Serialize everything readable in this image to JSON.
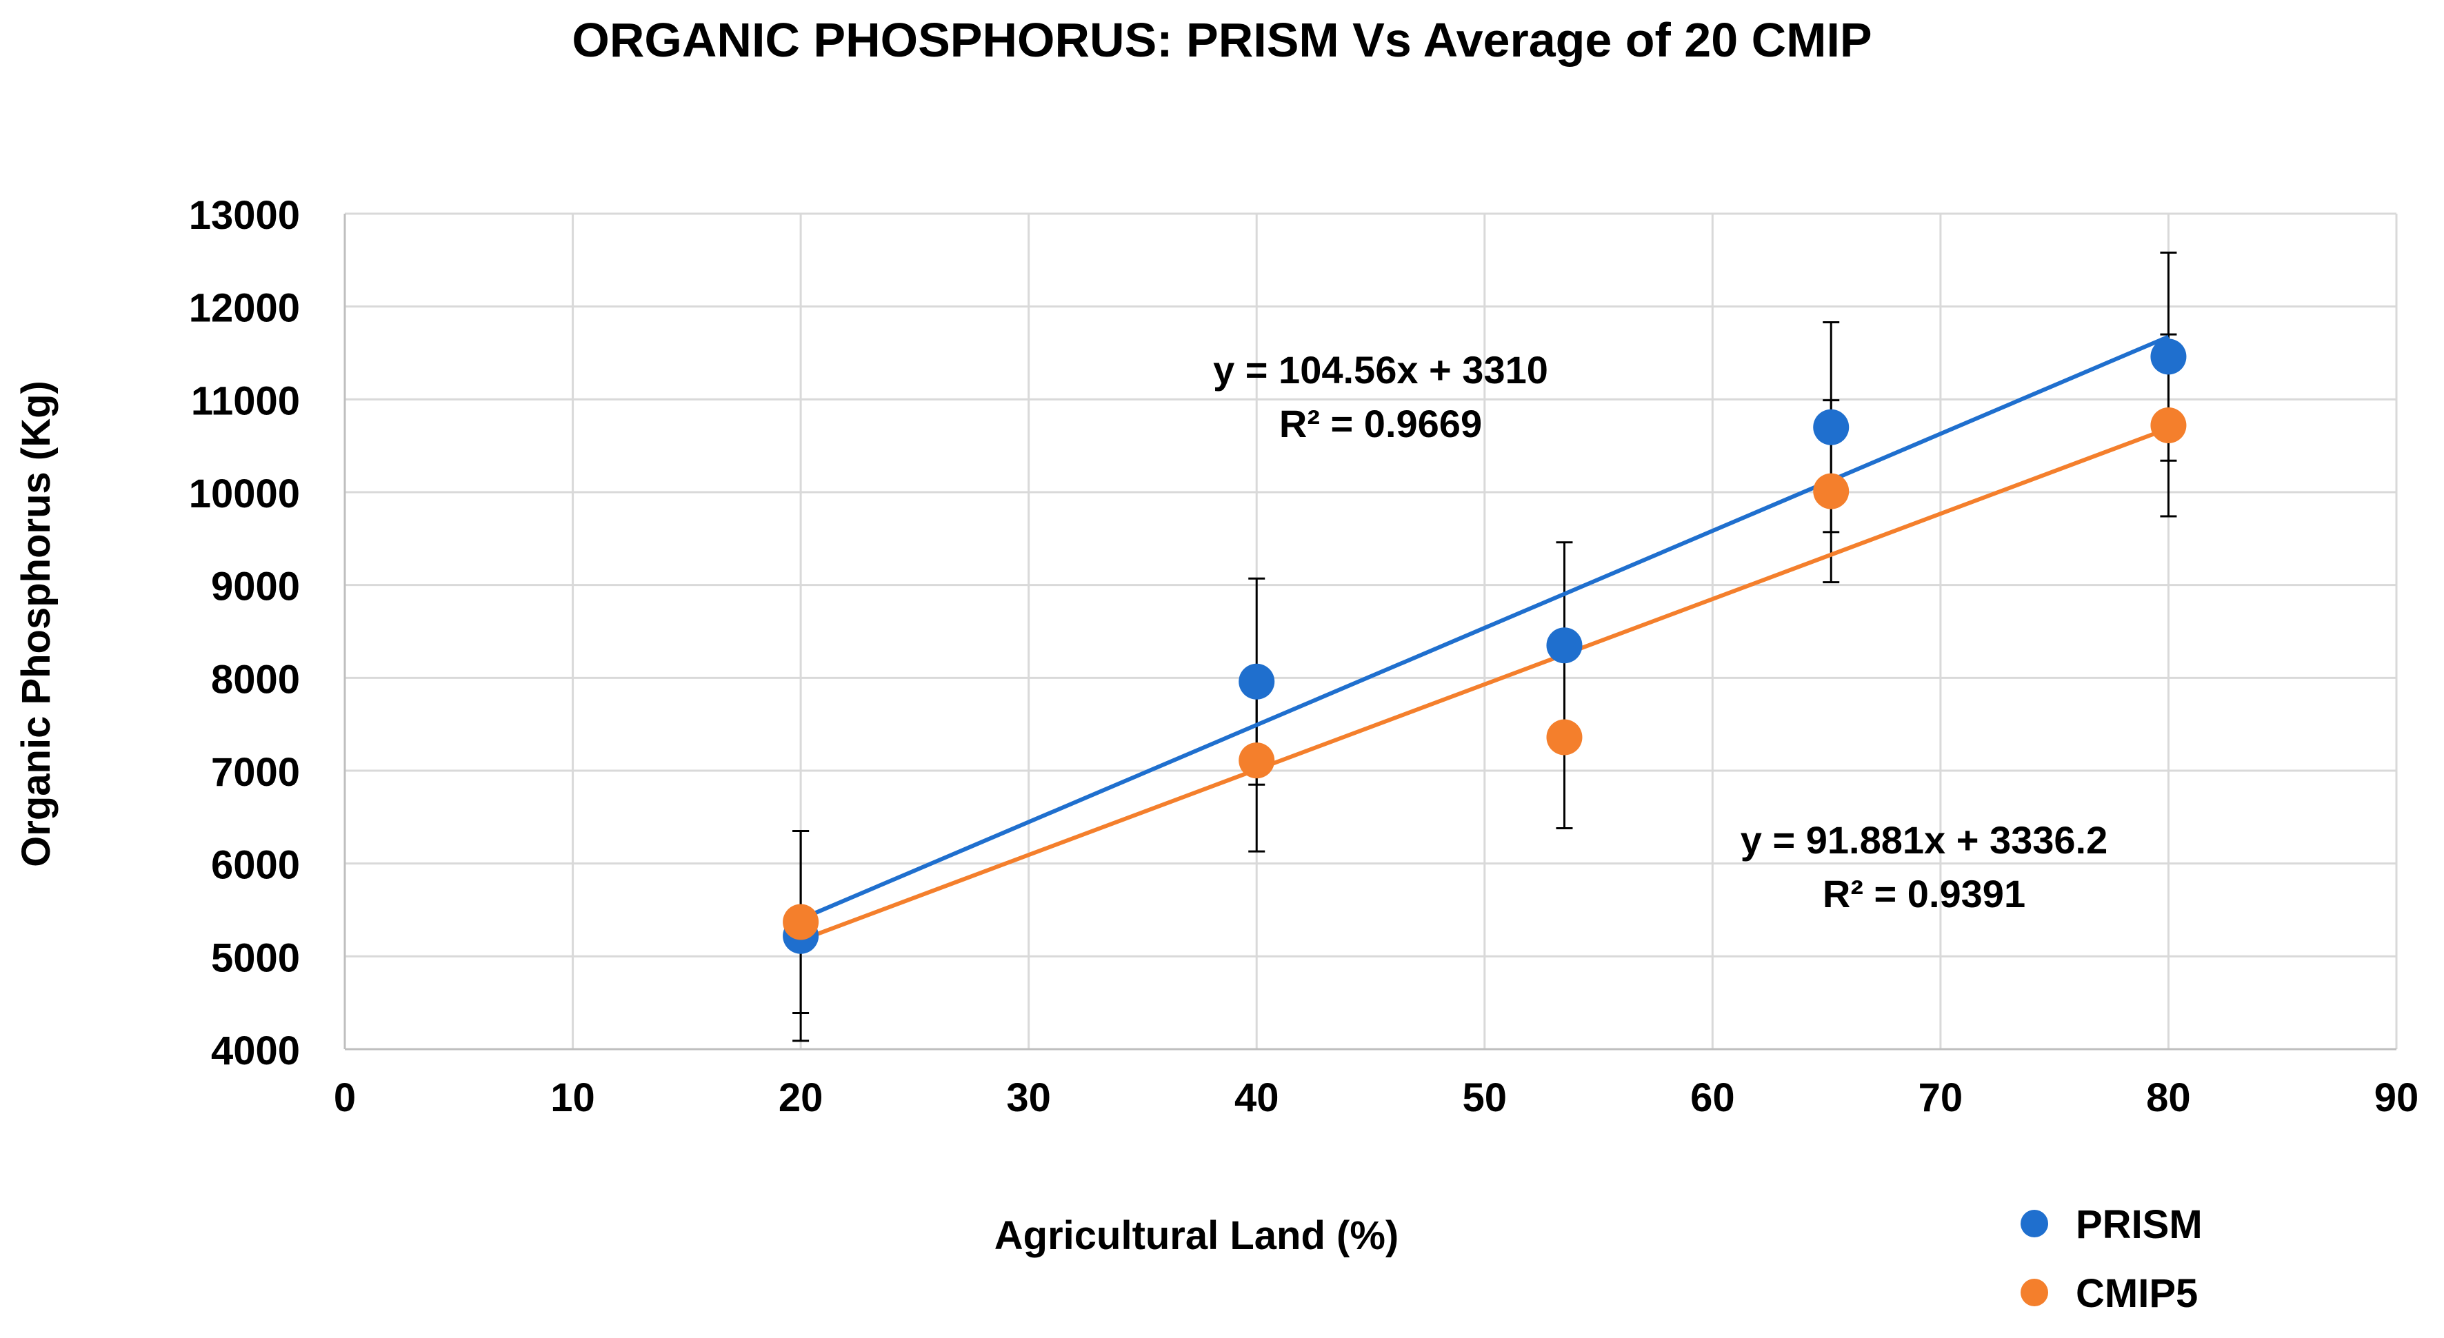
{
  "chart_data": {
    "type": "scatter",
    "title": "ORGANIC PHOSPHORUS: PRISM Vs Average of 20 CMIP",
    "xlabel": "Agricultural Land (%)",
    "ylabel": "Organic Phosphorus (Kg)",
    "xlim": [
      0,
      90
    ],
    "ylim": [
      4000,
      13000
    ],
    "xticks": [
      0,
      10,
      20,
      30,
      40,
      50,
      60,
      70,
      80,
      90
    ],
    "yticks": [
      4000,
      5000,
      6000,
      7000,
      8000,
      9000,
      10000,
      11000,
      12000,
      13000
    ],
    "grid": true,
    "legend_position": "bottom-right",
    "series": [
      {
        "name": "PRISM",
        "color": "#1f6fce",
        "x": [
          20,
          40,
          53.5,
          65.2,
          80
        ],
        "y": [
          5220,
          7960,
          8350,
          10700,
          11460
        ],
        "error_plus": [
          1130,
          1110,
          1110,
          1130,
          1120
        ],
        "error_minus": [
          1130,
          1110,
          1110,
          1130,
          1120
        ],
        "trendline": {
          "slope": 104.56,
          "intercept": 3310,
          "x_range": [
            20,
            80
          ]
        },
        "equation": "y = 104.56x + 3310",
        "r_squared": "R² = 0.9669"
      },
      {
        "name": "CMIP5",
        "color": "#f47f2c",
        "x": [
          20,
          40,
          53.5,
          65.2,
          80
        ],
        "y": [
          5370,
          7110,
          7360,
          10010,
          10720
        ],
        "error_plus": [
          980,
          980,
          980,
          980,
          980
        ],
        "error_minus": [
          980,
          980,
          980,
          980,
          980
        ],
        "trendline": {
          "slope": 91.881,
          "intercept": 3336.2,
          "x_range": [
            20,
            80
          ]
        },
        "equation": "y = 91.881x + 3336.2",
        "r_squared": "R² = 0.9391"
      }
    ]
  }
}
